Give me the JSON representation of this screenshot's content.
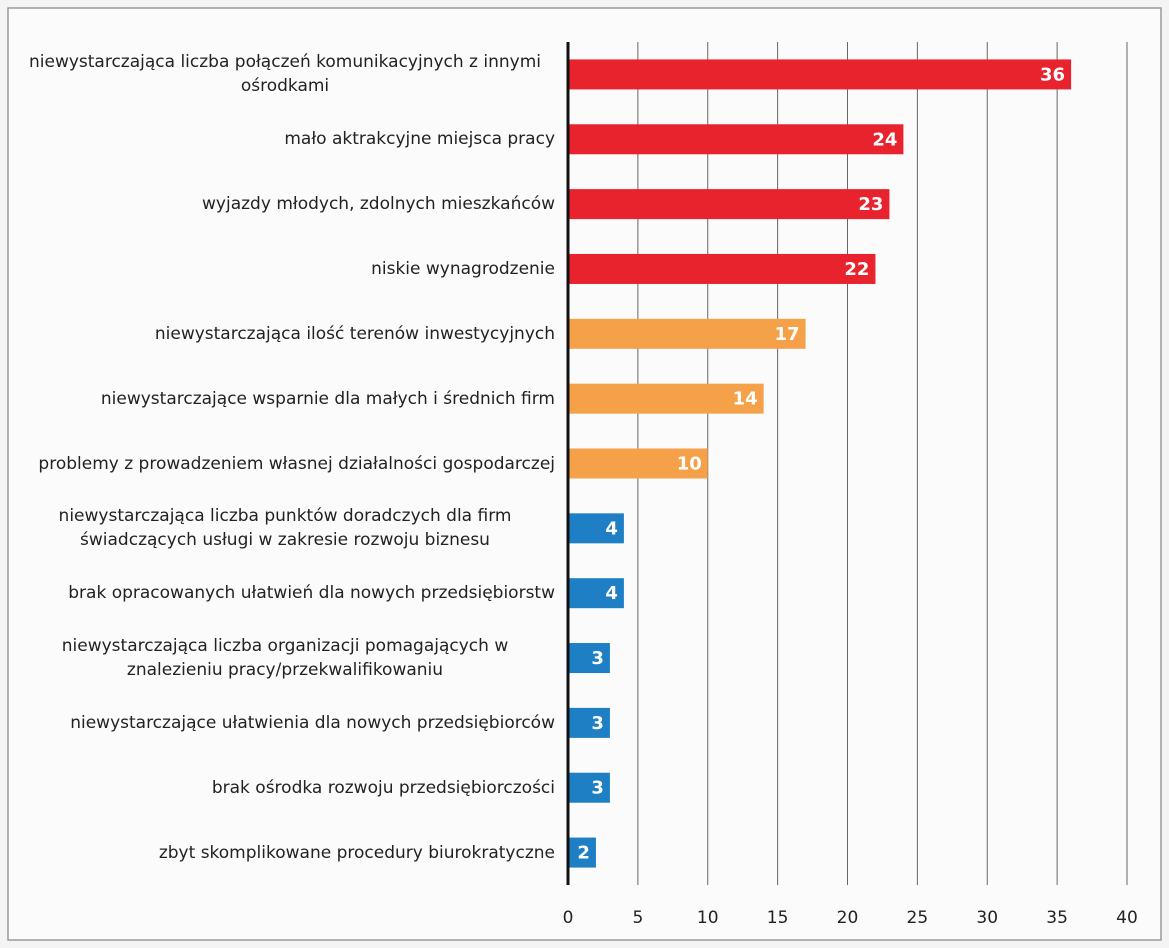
{
  "chart_data": {
    "type": "bar",
    "orientation": "horizontal",
    "categories": [
      "niewystarczająca liczba połączeń komunikacyjnych z innymi ośrodkami",
      "mało aktrakcyjne miejsca pracy",
      "wyjazdy młodych, zdolnych mieszkańców",
      "niskie wynagrodzenie",
      "niewystarczająca ilość terenów inwestycyjnych",
      "niewystarczające wsparnie dla małych i średnich firm",
      "problemy z prowadzeniem własnej działalności gospodarczej",
      "niewystarczająca liczba punktów doradczych dla firm świadczących usługi w zakresie rozwoju biznesu",
      "brak opracowanych ułatwień dla nowych przedsiębiorstw",
      "niewystarczająca liczba organizacji pomagających w znalezieniu pracy/przekwalifikowaniu",
      "niewystarczające ułatwienia dla nowych przedsiębiorców",
      "brak ośrodka rozwoju przedsiębiorczości",
      "zbyt skomplikowane procedury biurokratyczne"
    ],
    "values": [
      36,
      24,
      23,
      22,
      17,
      14,
      10,
      4,
      4,
      3,
      3,
      3,
      2
    ],
    "colors": [
      "#e8232e",
      "#e8232e",
      "#e8232e",
      "#e8232e",
      "#f5a14a",
      "#f5a14a",
      "#f5a14a",
      "#1e7fc4",
      "#1e7fc4",
      "#1e7fc4",
      "#1e7fc4",
      "#1e7fc4",
      "#1e7fc4"
    ],
    "xlim": [
      0,
      40
    ],
    "xticks": [
      0,
      5,
      10,
      15,
      20,
      25,
      30,
      35,
      40
    ],
    "grid": true
  }
}
